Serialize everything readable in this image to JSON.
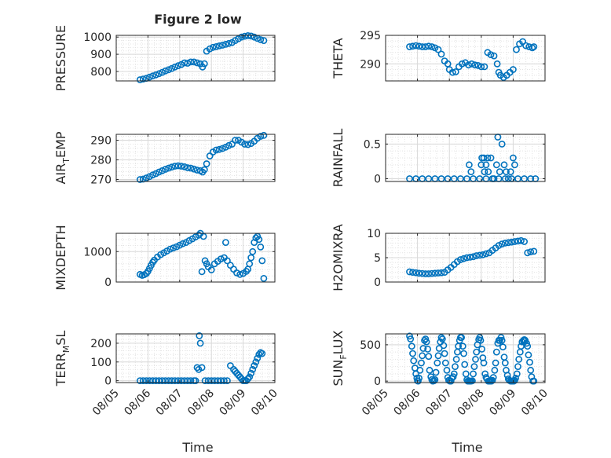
{
  "figure": {
    "title": "Figure 2 low",
    "xlabel": "Time",
    "x_ticks": [
      "08/05",
      "08/06",
      "08/07",
      "08/08",
      "08/09",
      "08/10"
    ]
  },
  "chart_data": [
    {
      "type": "scatter",
      "ylabel": "PRESSURE",
      "ylabel_parts": [
        "PRESSURE",
        "",
        ""
      ],
      "ylim": [
        745,
        1010
      ],
      "yticks": [
        800,
        900,
        1000
      ],
      "xlim": [
        "08/05",
        "08/10"
      ],
      "grid": true,
      "x_days": [
        0.75,
        0.85,
        0.95,
        1.05,
        1.15,
        1.25,
        1.35,
        1.45,
        1.55,
        1.65,
        1.75,
        1.85,
        1.95,
        2.05,
        2.15,
        2.25,
        2.35,
        2.45,
        2.55,
        2.65,
        2.72,
        2.78,
        2.85,
        2.95,
        3.05,
        3.15,
        3.25,
        3.35,
        3.45,
        3.55,
        3.65,
        3.75,
        3.85,
        3.95,
        4.05,
        4.15,
        4.25,
        4.35,
        4.45,
        4.55,
        4.65
      ],
      "values": [
        752,
        756,
        760,
        767,
        774,
        780,
        787,
        795,
        803,
        810,
        817,
        826,
        833,
        840,
        850,
        848,
        855,
        855,
        850,
        844,
        826,
        845,
        918,
        932,
        940,
        944,
        949,
        953,
        958,
        963,
        968,
        980,
        990,
        1000,
        1005,
        1008,
        1006,
        1000,
        992,
        985,
        980
      ]
    },
    {
      "type": "scatter",
      "ylabel": "THETA",
      "ylabel_parts": [
        "THETA",
        "",
        ""
      ],
      "ylim": [
        287,
        295
      ],
      "yticks": [
        290,
        295
      ],
      "xlim": [
        "08/05",
        "08/10"
      ],
      "grid": true,
      "x_days": [
        0.75,
        0.85,
        0.95,
        1.05,
        1.15,
        1.25,
        1.35,
        1.45,
        1.55,
        1.65,
        1.75,
        1.85,
        1.95,
        2.0,
        2.1,
        2.2,
        2.3,
        2.4,
        2.5,
        2.6,
        2.7,
        2.8,
        2.9,
        3.0,
        3.1,
        3.2,
        3.3,
        3.4,
        3.5,
        3.55,
        3.6,
        3.7,
        3.8,
        3.9,
        4.0,
        4.1,
        4.2,
        4.3,
        4.4,
        4.5,
        4.6,
        4.65
      ],
      "values": [
        293,
        293.1,
        293.2,
        293.1,
        293,
        293,
        293.1,
        293,
        292.8,
        292.5,
        291.7,
        290.5,
        290,
        289,
        288.5,
        288.6,
        289.5,
        290,
        290.2,
        289.8,
        290,
        289.8,
        289.7,
        289.5,
        289.5,
        292,
        291.6,
        291.4,
        290,
        288.5,
        288,
        287.6,
        288,
        288.5,
        289,
        292.5,
        293.5,
        293.9,
        293.2,
        293,
        292.8,
        293
      ]
    },
    {
      "type": "scatter",
      "ylabel": "AIR_TEMP",
      "ylabel_parts": [
        "AIR",
        "T",
        "EMP"
      ],
      "ylim": [
        269,
        293
      ],
      "yticks": [
        270,
        280,
        290
      ],
      "xlim": [
        "08/05",
        "08/10"
      ],
      "grid": true,
      "x_days": [
        0.75,
        0.85,
        0.95,
        1.05,
        1.15,
        1.25,
        1.35,
        1.45,
        1.55,
        1.65,
        1.75,
        1.85,
        1.95,
        2.05,
        2.15,
        2.25,
        2.35,
        2.45,
        2.55,
        2.65,
        2.72,
        2.78,
        2.85,
        2.95,
        3.05,
        3.15,
        3.25,
        3.35,
        3.45,
        3.55,
        3.65,
        3.75,
        3.85,
        3.95,
        4.05,
        4.15,
        4.25,
        4.35,
        4.45,
        4.55,
        4.65
      ],
      "values": [
        270,
        270.2,
        270.8,
        271.5,
        272.3,
        273,
        273.8,
        274.5,
        275.2,
        275.8,
        276.3,
        276.8,
        277,
        276.8,
        276.5,
        276,
        275.8,
        275.3,
        274.8,
        274.5,
        273.8,
        275,
        278,
        282,
        284,
        285,
        285.3,
        285.8,
        286.5,
        287.3,
        288,
        290,
        290,
        289,
        288,
        287.8,
        288.3,
        289.5,
        291,
        292,
        292.5
      ]
    },
    {
      "type": "scatter",
      "ylabel": "RAINFALL",
      "ylabel_parts": [
        "RAINFALL",
        "",
        ""
      ],
      "ylim": [
        -0.04,
        0.64
      ],
      "yticks": [
        0,
        0.5
      ],
      "ytick_labels": [
        "0",
        "0.5"
      ],
      "xlim": [
        "08/05",
        "08/10"
      ],
      "grid": true,
      "x_days": [
        0.75,
        0.95,
        1.15,
        1.35,
        1.55,
        1.75,
        1.95,
        2.15,
        2.35,
        2.55,
        2.75,
        2.95,
        3.15,
        3.35,
        3.55,
        3.75,
        3.95,
        4.15,
        4.35,
        4.55,
        4.7,
        2.62,
        2.68,
        3.0,
        3.02,
        3.08,
        3.1,
        3.15,
        3.2,
        3.22,
        3.3,
        3.4,
        3.48,
        3.52,
        3.58,
        3.65,
        3.72,
        3.78,
        3.85,
        3.92,
        4.0,
        4.05
      ],
      "values": [
        0,
        0,
        0,
        0,
        0,
        0,
        0,
        0,
        0,
        0,
        0,
        0,
        0,
        0,
        0,
        0,
        0,
        0,
        0,
        0,
        0,
        0.2,
        0.1,
        0.2,
        0.3,
        0.3,
        0.1,
        0.2,
        0.3,
        0.1,
        0.3,
        0,
        0.2,
        0.6,
        0.1,
        0.5,
        0.2,
        0.1,
        0,
        0.1,
        0.3,
        0.2
      ]
    },
    {
      "type": "scatter",
      "ylabel": "MIXDEPTH",
      "ylabel_parts": [
        "MIXDEPTH",
        "",
        ""
      ],
      "ylim": [
        0,
        1600
      ],
      "yticks": [
        0,
        1000
      ],
      "xlim": [
        "08/05",
        "08/10"
      ],
      "grid": true,
      "x_days": [
        0.75,
        0.82,
        0.88,
        0.95,
        1.0,
        1.05,
        1.1,
        1.15,
        1.2,
        1.3,
        1.4,
        1.5,
        1.6,
        1.7,
        1.8,
        1.9,
        2.0,
        2.1,
        2.2,
        2.3,
        2.4,
        2.5,
        2.6,
        2.65,
        2.7,
        2.75,
        2.8,
        2.85,
        2.9,
        3.0,
        3.1,
        3.2,
        3.3,
        3.4,
        3.45,
        3.5,
        3.6,
        3.7,
        3.8,
        3.9,
        4.0,
        4.1,
        4.15,
        4.2,
        4.25,
        4.3,
        4.35,
        4.4,
        4.45,
        4.5,
        4.55,
        4.6,
        4.65
      ],
      "values": [
        250,
        220,
        240,
        280,
        350,
        450,
        550,
        650,
        720,
        820,
        900,
        960,
        1020,
        1080,
        1120,
        1160,
        1210,
        1260,
        1300,
        1360,
        1420,
        1480,
        1540,
        1600,
        340,
        1500,
        700,
        600,
        500,
        400,
        600,
        680,
        760,
        800,
        1300,
        700,
        550,
        420,
        300,
        250,
        280,
        350,
        420,
        600,
        800,
        1000,
        1300,
        1450,
        1500,
        1400,
        1150,
        700,
        120
      ]
    },
    {
      "type": "scatter",
      "ylabel": "H2OMIXRA",
      "ylabel_parts": [
        "H2OMIXRA",
        "",
        ""
      ],
      "ylim": [
        0,
        10
      ],
      "yticks": [
        0,
        5,
        10
      ],
      "xlim": [
        "08/05",
        "08/10"
      ],
      "grid": true,
      "x_days": [
        0.75,
        0.85,
        0.95,
        1.05,
        1.15,
        1.25,
        1.35,
        1.45,
        1.55,
        1.65,
        1.75,
        1.85,
        1.95,
        2.05,
        2.15,
        2.25,
        2.35,
        2.45,
        2.55,
        2.65,
        2.75,
        2.85,
        2.95,
        3.05,
        3.15,
        3.25,
        3.35,
        3.45,
        3.55,
        3.65,
        3.75,
        3.85,
        3.95,
        4.05,
        4.15,
        4.25,
        4.35,
        4.45,
        4.55,
        4.65
      ],
      "values": [
        2.1,
        2.0,
        1.9,
        1.8,
        1.75,
        1.7,
        1.7,
        1.75,
        1.8,
        1.85,
        1.9,
        2.0,
        2.5,
        3.0,
        3.6,
        4.2,
        4.6,
        4.8,
        5.0,
        5.1,
        5.2,
        5.4,
        5.5,
        5.6,
        5.8,
        6.0,
        6.5,
        7.0,
        7.5,
        7.8,
        8.0,
        8.1,
        8.2,
        8.3,
        8.4,
        8.5,
        8.3,
        6.0,
        6.2,
        6.3
      ]
    },
    {
      "type": "scatter",
      "ylabel": "TERR_MSL",
      "ylabel_parts": [
        "TERR",
        "M",
        "SL"
      ],
      "ylim": [
        -10,
        250
      ],
      "yticks": [
        0,
        100,
        200
      ],
      "xlim": [
        "08/05",
        "08/10"
      ],
      "grid": true,
      "x_days": [
        0.75,
        0.85,
        0.95,
        1.05,
        1.15,
        1.25,
        1.35,
        1.45,
        1.55,
        1.65,
        1.75,
        1.85,
        1.95,
        2.05,
        2.15,
        2.25,
        2.35,
        2.45,
        2.5,
        2.55,
        2.6,
        2.62,
        2.65,
        2.7,
        2.8,
        2.9,
        3.0,
        3.1,
        3.2,
        3.3,
        3.4,
        3.5,
        3.6,
        3.7,
        3.75,
        3.8,
        3.85,
        3.9,
        3.95,
        4.0,
        4.05,
        4.1,
        4.15,
        4.2,
        4.25,
        4.3,
        4.35,
        4.4,
        4.45,
        4.5,
        4.55,
        4.6
      ],
      "values": [
        0,
        0,
        0,
        0,
        0,
        0,
        0,
        0,
        0,
        0,
        0,
        0,
        0,
        0,
        0,
        0,
        0,
        0,
        0,
        70,
        60,
        240,
        200,
        70,
        0,
        0,
        0,
        0,
        0,
        0,
        0,
        0,
        80,
        60,
        50,
        40,
        30,
        20,
        10,
        0,
        0,
        0,
        10,
        20,
        40,
        60,
        80,
        100,
        120,
        140,
        150,
        145
      ]
    },
    {
      "type": "scatter",
      "ylabel": "SUN_FLUX",
      "ylabel_parts": [
        "SUN",
        "F",
        "LUX"
      ],
      "ylim": [
        -20,
        650
      ],
      "yticks": [
        0,
        500
      ],
      "xlim": [
        "08/05",
        "08/10"
      ],
      "grid": true,
      "x_days": [
        0.75,
        0.78,
        0.82,
        0.85,
        0.88,
        0.92,
        0.95,
        0.98,
        1.0,
        1.02,
        1.05,
        1.08,
        1.12,
        1.15,
        1.18,
        1.22,
        1.25,
        1.28,
        1.32,
        1.35,
        1.38,
        1.42,
        1.45,
        1.48,
        1.52,
        1.55,
        1.58,
        1.62,
        1.65,
        1.68,
        1.72,
        1.75,
        1.78,
        1.82,
        1.85,
        1.88,
        1.92,
        1.95,
        1.98,
        2.02,
        2.05,
        2.08,
        2.12,
        2.15,
        2.18,
        2.22,
        2.25,
        2.28,
        2.32,
        2.35,
        2.38,
        2.42,
        2.45,
        2.48,
        2.52,
        2.55,
        2.58,
        2.62,
        2.65,
        2.68,
        2.72,
        2.75,
        2.78,
        2.82,
        2.85,
        2.88,
        2.92,
        2.95,
        2.98,
        3.02,
        3.05,
        3.08,
        3.12,
        3.15,
        3.18,
        3.22,
        3.25,
        3.28,
        3.32,
        3.35,
        3.38,
        3.42,
        3.45,
        3.48,
        3.52,
        3.55,
        3.58,
        3.62,
        3.65,
        3.68,
        3.72,
        3.75,
        3.78,
        3.82,
        3.85,
        3.88,
        3.92,
        3.95,
        3.98,
        4.02,
        4.05,
        4.08,
        4.12,
        4.15,
        4.18,
        4.22,
        4.25,
        4.28,
        4.32,
        4.35,
        4.38,
        4.42,
        4.45,
        4.48,
        4.52,
        4.55,
        4.58,
        4.62,
        4.65
      ],
      "values": [
        620,
        580,
        480,
        380,
        280,
        180,
        100,
        40,
        5,
        0,
        40,
        150,
        250,
        350,
        450,
        560,
        580,
        540,
        440,
        340,
        150,
        60,
        20,
        0,
        5,
        20,
        120,
        250,
        350,
        450,
        540,
        600,
        580,
        490,
        380,
        250,
        150,
        50,
        10,
        0,
        0,
        40,
        60,
        100,
        200,
        300,
        400,
        480,
        560,
        600,
        600,
        480,
        380,
        230,
        100,
        20,
        0,
        0,
        0,
        0,
        5,
        100,
        200,
        300,
        400,
        500,
        570,
        600,
        560,
        440,
        320,
        250,
        100,
        50,
        30,
        0,
        0,
        0,
        0,
        10,
        50,
        150,
        250,
        400,
        520,
        560,
        560,
        600,
        560,
        470,
        330,
        250,
        150,
        80,
        30,
        10,
        0,
        0,
        0,
        0,
        10,
        40,
        100,
        200,
        300,
        400,
        480,
        540,
        560,
        570,
        560,
        520,
        480,
        360,
        260,
        150,
        60,
        0,
        0
      ]
    }
  ]
}
